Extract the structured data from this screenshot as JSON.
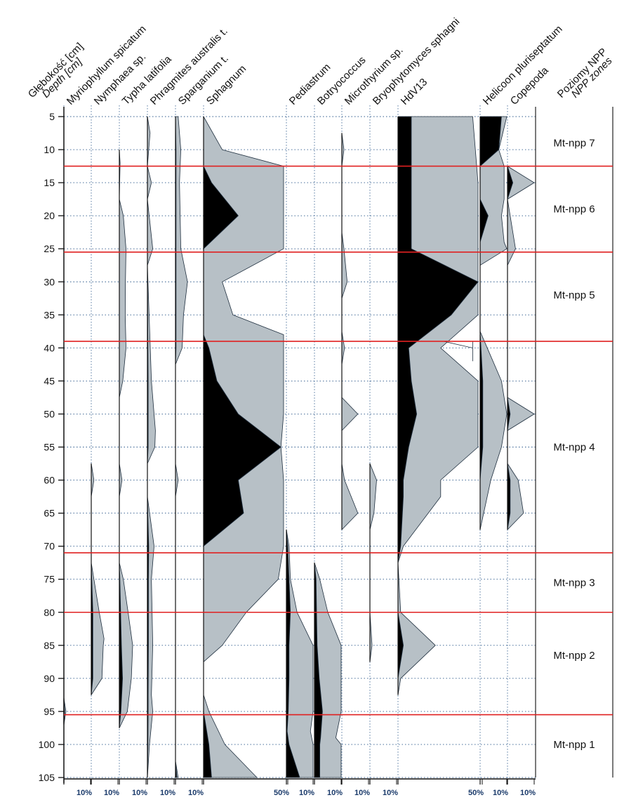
{
  "chart_data": {
    "type": "area",
    "title": "",
    "y_axis": {
      "label_pl": "Głębokość [cm]",
      "label_en": "Depth [cm]",
      "range": [
        5,
        105
      ],
      "ticks": [
        5,
        10,
        15,
        20,
        25,
        30,
        35,
        40,
        45,
        50,
        55,
        60,
        65,
        70,
        75,
        80,
        85,
        90,
        95,
        100,
        105
      ],
      "inverted": true
    },
    "colors": {
      "exaggeration_fill": "#b7c0c6",
      "value_fill": "#000000",
      "zone_line": "#e02020",
      "grid": "#2e5a8c",
      "scale_text": "#1a3a6a"
    },
    "series": [
      {
        "name": "Myriophyllum spicatum",
        "scale": 10,
        "scale_label": "10%",
        "depths": [
          93,
          95,
          97
        ],
        "values": [
          0,
          0.3,
          0
        ],
        "exaggerated": [
          0,
          0.8,
          0
        ]
      },
      {
        "name": "Nymphaea sp.",
        "scale": 10,
        "scale_label": "10%",
        "depths": [
          57.5,
          60,
          62.5,
          72.5,
          75,
          80,
          84,
          85,
          90,
          92.5
        ],
        "values": [
          0,
          0,
          0,
          0,
          0.2,
          0.6,
          0.6,
          0.6,
          0.6,
          0
        ],
        "exaggerated": [
          0,
          1,
          0,
          0,
          1,
          3,
          4.8,
          4.5,
          4,
          0
        ]
      },
      {
        "name": "Typha latifolia",
        "scale": 10,
        "scale_label": "10%",
        "depths": [
          10,
          12,
          17.5,
          20,
          25,
          30,
          35,
          40,
          45,
          47.5,
          57.5,
          60,
          62.5,
          72.5,
          75,
          80,
          85,
          90,
          95,
          97.5
        ],
        "values": [
          0,
          0,
          0,
          0,
          0,
          0,
          0,
          0,
          0,
          0,
          0,
          0,
          0,
          0,
          0.2,
          0.5,
          0.8,
          1.2,
          0.6,
          0
        ],
        "exaggerated": [
          0,
          0.3,
          0,
          1.5,
          2.5,
          2.3,
          2.2,
          2.5,
          1.3,
          0,
          0,
          1,
          0,
          0,
          1.5,
          3.3,
          5,
          4.5,
          3,
          0
        ]
      },
      {
        "name": "Phragmites australis t.",
        "scale": 10,
        "scale_label": "10%",
        "depths": [
          5,
          7.5,
          12.5,
          15,
          17.5,
          25,
          27.5,
          45,
          50,
          52.5,
          55,
          57.5,
          62.5,
          70,
          75,
          85,
          92.5,
          95,
          100,
          105
        ],
        "values": [
          0,
          0,
          0,
          0,
          0,
          0,
          0,
          0.3,
          0.3,
          0.3,
          0.3,
          0,
          0,
          0.5,
          0.4,
          0.4,
          0.3,
          0.3,
          0.2,
          0
        ],
        "exaggerated": [
          0,
          1,
          0,
          1.5,
          0,
          2,
          0,
          1.5,
          2.5,
          3,
          2.8,
          0,
          0,
          2.5,
          1.5,
          2,
          1.5,
          2,
          0.8,
          0
        ]
      },
      {
        "name": "Sparganium t.",
        "scale": 10,
        "scale_label": "10%",
        "depths": [
          5,
          10,
          15,
          25,
          30,
          35,
          40,
          42.5,
          57.5,
          60,
          62.5,
          102.5,
          105
        ],
        "values": [
          0,
          0.2,
          0.2,
          0.2,
          0.2,
          0.2,
          0.2,
          0,
          0,
          0,
          0,
          0,
          0.5
        ],
        "exaggerated": [
          1,
          2,
          1.5,
          2,
          4.5,
          3,
          2.5,
          0,
          0,
          1,
          0,
          0,
          1
        ]
      },
      {
        "name": "Sphagnum",
        "scale": 50,
        "scale_label": "50%",
        "depths": [
          5,
          10,
          12.5,
          15,
          20,
          25,
          30,
          35,
          38,
          40,
          45,
          50,
          55,
          60,
          65,
          70,
          75,
          80,
          85,
          87.5,
          92.5,
          95,
          100,
          105
        ],
        "values": [
          0,
          0,
          0,
          3,
          13,
          0,
          0,
          0,
          0,
          2,
          5,
          13,
          29,
          13,
          15,
          0,
          0,
          0,
          0,
          0,
          0,
          0,
          2,
          3
        ],
        "exaggerated": [
          0,
          7,
          30,
          30,
          30,
          30,
          7,
          11,
          30,
          30,
          30,
          30,
          29,
          30,
          30,
          30,
          28,
          16,
          7,
          0,
          0,
          2,
          8,
          20
        ]
      },
      {
        "name": "Pediastrum",
        "scale": 10,
        "scale_label": "10%",
        "depths": [
          67.5,
          70,
          75,
          80,
          85,
          90,
          95,
          98,
          100,
          105
        ],
        "values": [
          0,
          0.5,
          1,
          1.5,
          1,
          1,
          0.7,
          0.3,
          1,
          5
        ],
        "exaggerated": [
          0,
          1,
          1.5,
          4,
          10,
          10,
          10,
          9,
          10,
          10
        ]
      },
      {
        "name": "Botryococcus",
        "scale": 10,
        "scale_label": "10%",
        "depths": [
          72.5,
          75,
          80,
          85,
          90,
          95,
          99,
          100,
          105
        ],
        "values": [
          0,
          0.6,
          0.8,
          1,
          1.8,
          3,
          2.3,
          2,
          2
        ],
        "exaggerated": [
          0,
          2,
          5,
          10,
          10,
          10,
          8,
          10,
          10
        ]
      },
      {
        "name": "Microthyrium sp.",
        "scale": 10,
        "scale_label": "10%",
        "depths": [
          7.5,
          10,
          12.5,
          22.5,
          25,
          30,
          32.5,
          37.5,
          40,
          42.5,
          47.5,
          50,
          52.5,
          57.5,
          60,
          65,
          67.5
        ],
        "values": [
          0,
          0,
          0,
          0,
          0,
          0,
          0,
          0,
          0,
          0,
          0,
          0,
          0,
          0,
          0,
          0,
          0
        ],
        "exaggerated": [
          0,
          0.8,
          0,
          0,
          0.8,
          2,
          0,
          0,
          1,
          0,
          0,
          6,
          0,
          0,
          1,
          6,
          0
        ]
      },
      {
        "name": "Bryophytomyces sphagni",
        "scale": 10,
        "scale_label": "10%",
        "depths": [
          57.5,
          60,
          65,
          67.5,
          80,
          85,
          87.5
        ],
        "values": [
          0,
          0,
          0,
          0,
          0,
          0,
          0
        ],
        "exaggerated": [
          0,
          2.5,
          1.5,
          0,
          0,
          0.8,
          0
        ]
      },
      {
        "name": "HdV13",
        "scale": 50,
        "scale_label": "50%",
        "depths": [
          5,
          15,
          25,
          30,
          35,
          40,
          45,
          50,
          55,
          60,
          62.5,
          70,
          72.5,
          80,
          85,
          90,
          92.5
        ],
        "values": [
          5,
          5,
          5,
          30,
          20,
          4,
          5,
          7,
          4,
          2,
          2,
          1,
          0,
          0,
          2,
          0,
          0
        ],
        "exaggerated": [
          28,
          30,
          30,
          30,
          30,
          16,
          30,
          30,
          30,
          16,
          16,
          2,
          0,
          1,
          14,
          1,
          0
        ],
        "notch": {
          "depths": [
            39,
            40,
            42
          ],
          "values": [
            17,
            28,
            28
          ]
        }
      },
      {
        "name": "Helicoon pluriseptatum",
        "scale": 10,
        "scale_label": "10%",
        "depths": [
          5,
          10,
          12.5,
          17.5,
          20,
          24,
          25,
          27.5,
          37.5,
          45,
          50,
          55,
          60,
          67.5
        ],
        "values": [
          8,
          7,
          0,
          0,
          3,
          0,
          0,
          0,
          0,
          1,
          1,
          1,
          0,
          0
        ],
        "exaggerated": [
          10,
          7,
          9,
          9,
          8,
          9,
          10,
          0,
          0,
          8,
          10,
          8,
          4,
          0
        ]
      },
      {
        "name": "Copepoda",
        "scale": 10,
        "scale_label": "10%",
        "depths": [
          12.5,
          15,
          17.5,
          25,
          27.5,
          47.5,
          50,
          52.5,
          57.5,
          60,
          65,
          67.5
        ],
        "values": [
          0,
          2,
          0,
          0,
          0,
          0,
          1,
          0,
          0,
          1,
          1,
          0
        ],
        "exaggerated": [
          0,
          10,
          0,
          3,
          0,
          0,
          10,
          0,
          0,
          4,
          6,
          0
        ]
      }
    ],
    "zones": {
      "header_pl": "Poziomy NPP",
      "header_en": "NPP zones",
      "boundaries": [
        12.5,
        25.5,
        39,
        71,
        80,
        95.5
      ],
      "labels": [
        {
          "name": "Mt-npp 7",
          "depth": 9
        },
        {
          "name": "Mt-npp 6",
          "depth": 19
        },
        {
          "name": "Mt-npp 5",
          "depth": 32
        },
        {
          "name": "Mt-npp 4",
          "depth": 55
        },
        {
          "name": "Mt-npp 3",
          "depth": 75.5
        },
        {
          "name": "Mt-npp 2",
          "depth": 86.5
        },
        {
          "name": "Mt-npp 1",
          "depth": 100
        }
      ]
    }
  }
}
